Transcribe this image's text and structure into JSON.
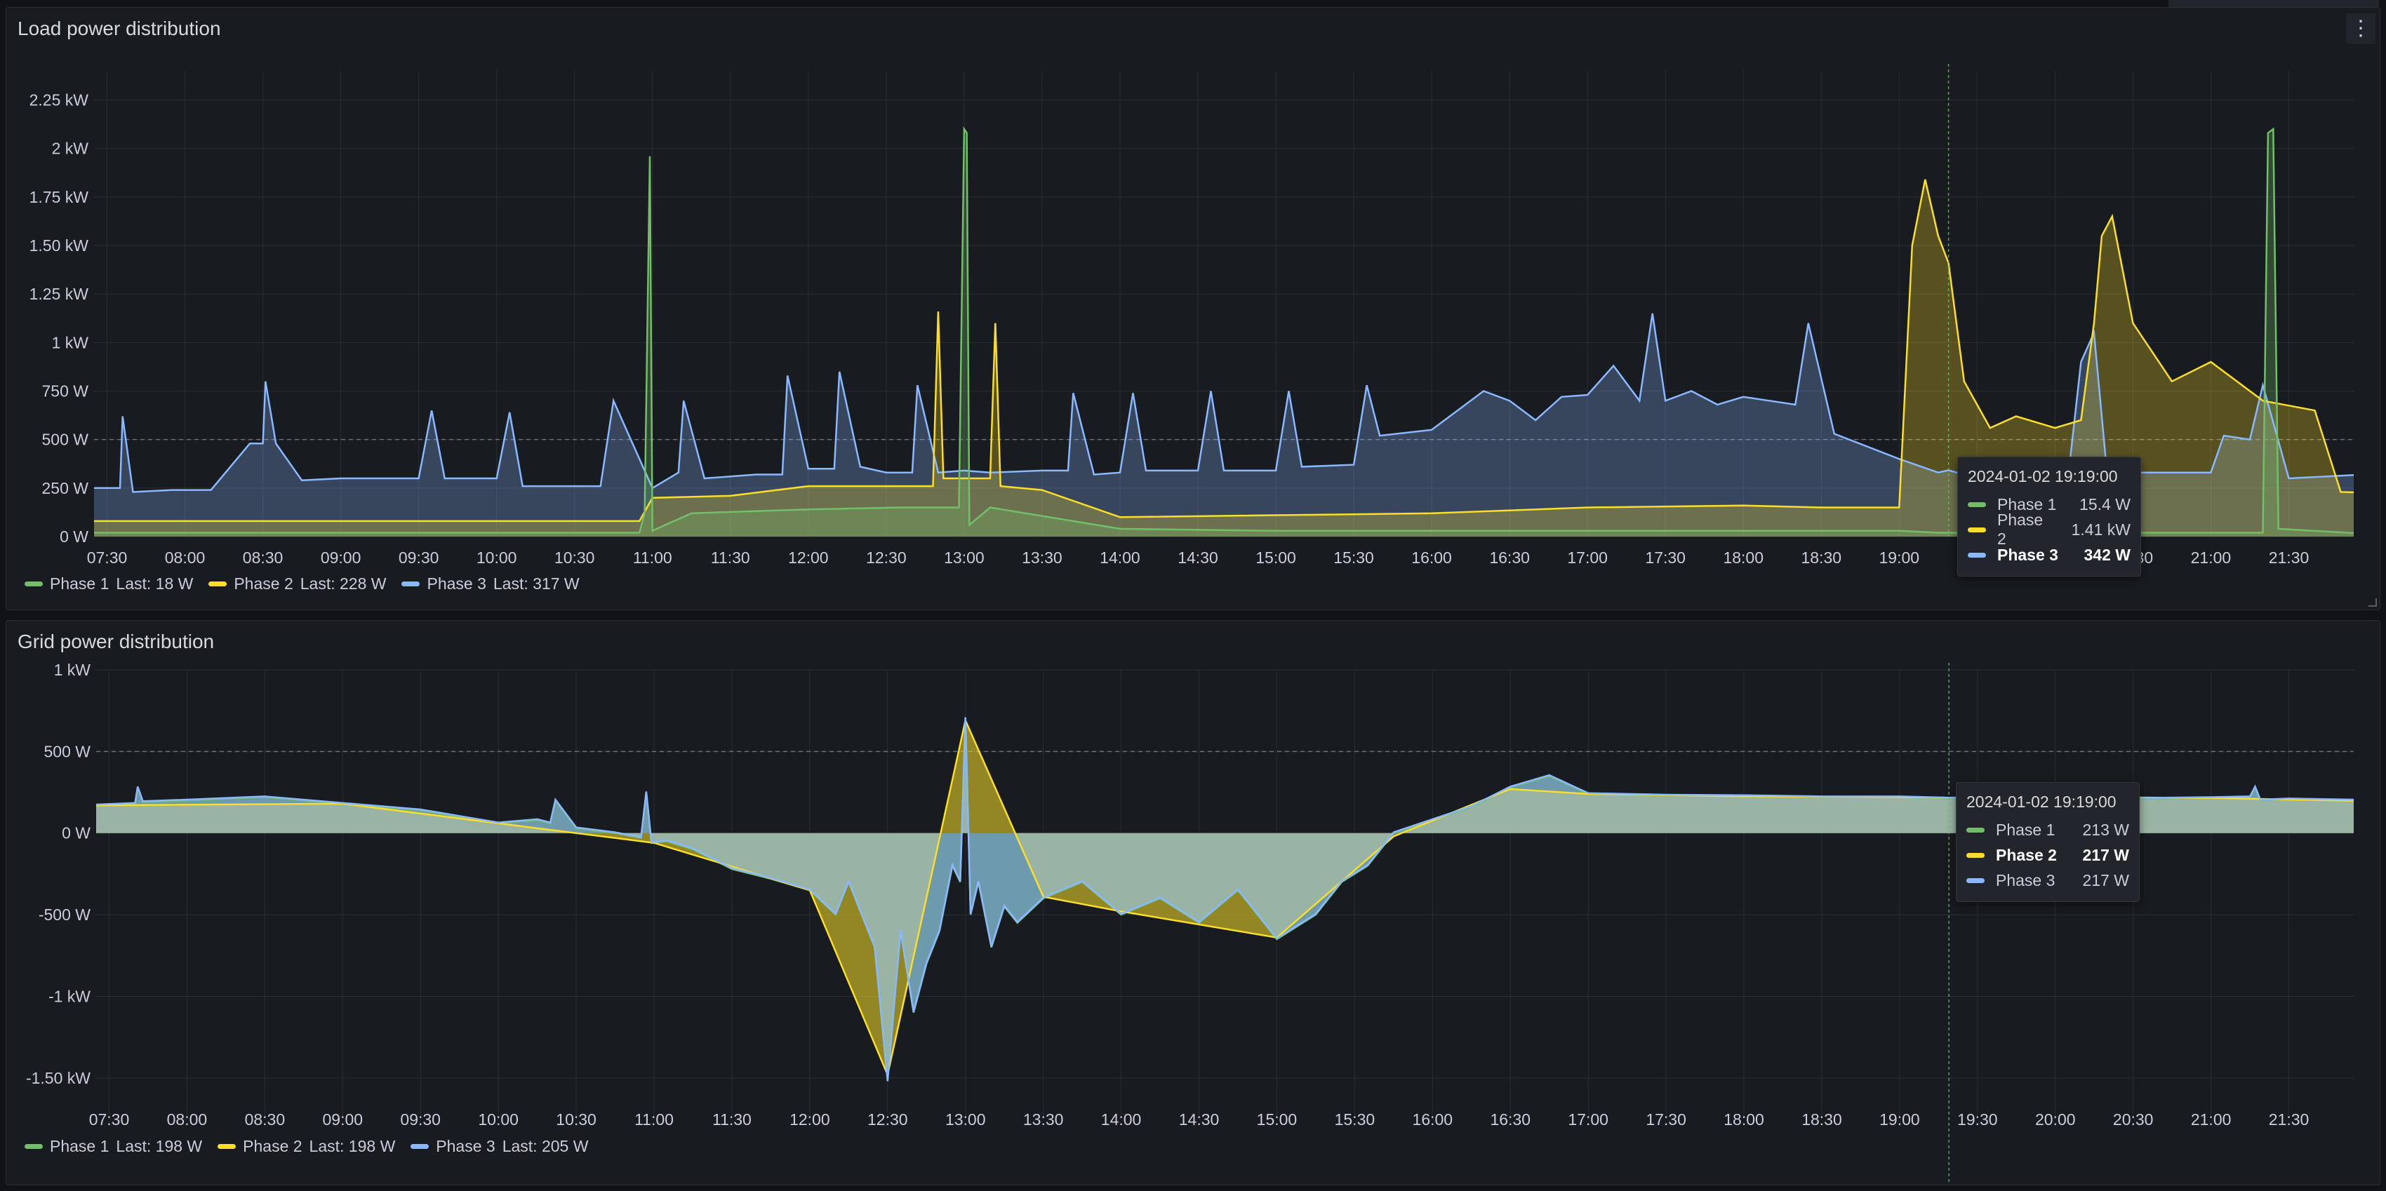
{
  "colors": {
    "phase1": "#73bf69",
    "phase2": "#fade2a",
    "phase3": "#8ab8ff",
    "grid": "#2a2d33",
    "threshold": "#6e7079"
  },
  "icons": {
    "panel_menu": "kebab-menu-icon"
  },
  "load_panel": {
    "title": "Load power distribution",
    "legend": [
      {
        "name": "Phase 1",
        "last": "Last: 18 W"
      },
      {
        "name": "Phase 2",
        "last": "Last: 228 W"
      },
      {
        "name": "Phase 3",
        "last": "Last: 317 W"
      }
    ],
    "tooltip": {
      "time": "2024-01-02 19:19:00",
      "rows": [
        {
          "name": "Phase 1",
          "value": "15.4 W"
        },
        {
          "name": "Phase 2",
          "value": "1.41 kW"
        },
        {
          "name": "Phase 3",
          "value": "342 W"
        }
      ]
    }
  },
  "grid_panel": {
    "title": "Grid power distribution",
    "legend": [
      {
        "name": "Phase 1",
        "last": "Last: 198 W"
      },
      {
        "name": "Phase 2",
        "last": "Last: 198 W"
      },
      {
        "name": "Phase 3",
        "last": "Last: 205 W"
      }
    ],
    "tooltip": {
      "time": "2024-01-02 19:19:00",
      "rows": [
        {
          "name": "Phase 1",
          "value": "213 W"
        },
        {
          "name": "Phase 2",
          "value": "217 W"
        },
        {
          "name": "Phase 3",
          "value": "217 W"
        }
      ]
    }
  },
  "chart_data": [
    {
      "type": "area",
      "title": "Load power distribution",
      "x_unit": "time (HH:MM)",
      "y_unit": "W",
      "xlim": [
        "07:25",
        "21:55"
      ],
      "ylim": [
        0,
        2400
      ],
      "y_ticks": [
        0,
        250,
        500,
        750,
        1000,
        1250,
        1500,
        1750,
        2000,
        2250
      ],
      "y_tick_labels": [
        "0 W",
        "250 W",
        "500 W",
        "750 W",
        "1 kW",
        "1.25 kW",
        "1.50 kW",
        "1.75 kW",
        "2 kW",
        "2.25 kW"
      ],
      "x_tick_labels": [
        "07:30",
        "08:00",
        "08:30",
        "09:00",
        "09:30",
        "10:00",
        "10:30",
        "11:00",
        "11:30",
        "12:00",
        "12:30",
        "13:00",
        "13:30",
        "14:00",
        "14:30",
        "15:00",
        "15:30",
        "16:00",
        "16:30",
        "17:00",
        "17:30",
        "18:00",
        "18:30",
        "19:00",
        "19:30",
        "20:00",
        "20:30",
        "21:00",
        "21:30"
      ],
      "threshold": 500,
      "cursor_time": "19:19",
      "series": [
        {
          "name": "Phase 1",
          "x": [
            "07:25",
            "10:55",
            "10:57",
            "10:59",
            "11:00",
            "11:15",
            "12:00",
            "12:35",
            "12:58",
            "13:00",
            "13:01",
            "13:02",
            "13:10",
            "14:00",
            "15:00",
            "16:00",
            "17:00",
            "18:00",
            "19:00",
            "19:15",
            "21:20",
            "21:22",
            "21:24",
            "21:26",
            "21:55"
          ],
          "values": [
            20,
            20,
            120,
            1960,
            30,
            120,
            140,
            150,
            150,
            2100,
            2080,
            60,
            150,
            40,
            30,
            30,
            30,
            30,
            30,
            20,
            20,
            2080,
            2100,
            40,
            18
          ]
        },
        {
          "name": "Phase 2",
          "x": [
            "07:25",
            "10:55",
            "11:00",
            "11:30",
            "12:00",
            "12:35",
            "12:48",
            "12:50",
            "12:52",
            "13:10",
            "13:12",
            "13:14",
            "13:30",
            "14:00",
            "16:00",
            "17:00",
            "18:00",
            "18:30",
            "19:00",
            "19:05",
            "19:10",
            "19:15",
            "19:19",
            "19:25",
            "19:35",
            "19:45",
            "20:00",
            "20:10",
            "20:15",
            "20:18",
            "20:22",
            "20:30",
            "20:45",
            "21:00",
            "21:20",
            "21:40",
            "21:50",
            "21:55"
          ],
          "values": [
            80,
            80,
            200,
            210,
            260,
            260,
            260,
            1160,
            300,
            300,
            1100,
            260,
            240,
            100,
            120,
            150,
            160,
            150,
            150,
            1500,
            1840,
            1550,
            1410,
            800,
            560,
            620,
            560,
            600,
            1100,
            1550,
            1650,
            1100,
            800,
            900,
            700,
            650,
            230,
            228
          ]
        },
        {
          "name": "Phase 3",
          "x": [
            "07:25",
            "07:35",
            "07:36",
            "07:40",
            "07:55",
            "08:10",
            "08:25",
            "08:30",
            "08:31",
            "08:35",
            "08:45",
            "09:00",
            "09:15",
            "09:30",
            "09:35",
            "09:40",
            "10:00",
            "10:05",
            "10:10",
            "10:30",
            "10:40",
            "10:45",
            "11:00",
            "11:10",
            "11:12",
            "11:20",
            "11:40",
            "11:50",
            "11:52",
            "12:00",
            "12:10",
            "12:12",
            "12:20",
            "12:30",
            "12:40",
            "12:42",
            "12:50",
            "13:00",
            "13:10",
            "13:30",
            "13:40",
            "13:42",
            "13:50",
            "14:00",
            "14:05",
            "14:10",
            "14:30",
            "14:35",
            "14:40",
            "15:00",
            "15:05",
            "15:10",
            "15:30",
            "15:35",
            "15:40",
            "16:00",
            "16:20",
            "16:30",
            "16:40",
            "16:50",
            "17:00",
            "17:10",
            "17:20",
            "17:25",
            "17:30",
            "17:40",
            "17:50",
            "18:00",
            "18:10",
            "18:20",
            "18:25",
            "18:35",
            "19:00",
            "19:15",
            "19:19",
            "19:30",
            "19:40",
            "20:00",
            "20:05",
            "20:10",
            "20:15",
            "20:20",
            "20:30",
            "20:45",
            "21:00",
            "21:05",
            "21:15",
            "21:20",
            "21:30",
            "21:55"
          ],
          "values": [
            250,
            250,
            620,
            230,
            240,
            240,
            480,
            480,
            800,
            480,
            290,
            300,
            300,
            300,
            650,
            300,
            300,
            640,
            260,
            260,
            260,
            700,
            250,
            330,
            700,
            300,
            320,
            320,
            830,
            350,
            350,
            850,
            360,
            330,
            330,
            780,
            330,
            340,
            330,
            340,
            340,
            740,
            320,
            330,
            740,
            340,
            340,
            750,
            340,
            340,
            750,
            360,
            370,
            780,
            520,
            550,
            750,
            700,
            600,
            720,
            730,
            880,
            700,
            1150,
            700,
            750,
            680,
            720,
            700,
            680,
            1100,
            530,
            400,
            330,
            342,
            300,
            280,
            300,
            300,
            900,
            1050,
            330,
            330,
            330,
            330,
            520,
            500,
            780,
            300,
            317
          ]
        }
      ]
    },
    {
      "type": "area",
      "title": "Grid power distribution",
      "x_unit": "time (HH:MM)",
      "y_unit": "W",
      "xlim": [
        "07:25",
        "21:55"
      ],
      "ylim": [
        -1750,
        1000
      ],
      "y_ticks": [
        -1500,
        -1000,
        -500,
        0,
        500,
        1000
      ],
      "y_tick_labels": [
        "-1.50 kW",
        "-1 kW",
        "-500 W",
        "0 W",
        "500 W",
        "1 kW"
      ],
      "x_tick_labels": [
        "07:30",
        "08:00",
        "08:30",
        "09:00",
        "09:30",
        "10:00",
        "10:30",
        "11:00",
        "11:30",
        "12:00",
        "12:30",
        "13:00",
        "13:30",
        "14:00",
        "14:30",
        "15:00",
        "15:30",
        "16:00",
        "16:30",
        "17:00",
        "17:30",
        "18:00",
        "18:30",
        "19:00",
        "19:30",
        "20:00",
        "20:30",
        "21:00",
        "21:30"
      ],
      "threshold": 500,
      "cursor_time": "19:19",
      "series": [
        {
          "name": "Phase 1",
          "x": [
            "07:25",
            "07:40",
            "07:41",
            "07:43",
            "08:00",
            "08:30",
            "09:00",
            "09:30",
            "09:45",
            "10:00",
            "10:15",
            "10:20",
            "10:22",
            "10:30",
            "10:45",
            "10:55",
            "10:57",
            "10:59",
            "11:05",
            "11:15",
            "11:30",
            "11:45",
            "12:00",
            "12:10",
            "12:15",
            "12:25",
            "12:30",
            "12:35",
            "12:40",
            "12:45",
            "12:50",
            "12:55",
            "12:58",
            "13:00",
            "13:02",
            "13:05",
            "13:10",
            "13:15",
            "13:20",
            "13:30",
            "13:45",
            "14:00",
            "14:15",
            "14:30",
            "14:45",
            "15:00",
            "15:15",
            "15:25",
            "15:35",
            "15:45",
            "16:00",
            "16:15",
            "16:30",
            "16:45",
            "17:00",
            "17:30",
            "18:00",
            "18:30",
            "19:00",
            "19:19",
            "19:30",
            "20:00",
            "20:30",
            "21:00",
            "21:15",
            "21:17",
            "21:19",
            "21:30",
            "21:55"
          ],
          "values": [
            170,
            180,
            280,
            190,
            200,
            220,
            180,
            140,
            100,
            60,
            80,
            60,
            200,
            30,
            0,
            -30,
            250,
            -60,
            -50,
            -100,
            -220,
            -280,
            -350,
            -500,
            -300,
            -700,
            -1500,
            -600,
            -1100,
            -800,
            -600,
            -200,
            -300,
            700,
            -500,
            -300,
            -700,
            -450,
            -550,
            -400,
            -300,
            -500,
            -400,
            -550,
            -350,
            -650,
            -500,
            -300,
            -200,
            0,
            80,
            160,
            280,
            350,
            240,
            230,
            230,
            220,
            220,
            213,
            215,
            220,
            210,
            215,
            220,
            280,
            200,
            210,
            198
          ]
        },
        {
          "name": "Phase 2",
          "x": [
            "07:25",
            "09:00",
            "10:00",
            "11:00",
            "12:00",
            "12:30",
            "13:00",
            "13:30",
            "14:00",
            "15:00",
            "15:45",
            "16:30",
            "17:00",
            "18:00",
            "19:00",
            "19:19",
            "20:00",
            "21:00",
            "21:55"
          ],
          "values": [
            170,
            180,
            60,
            -60,
            -350,
            -1480,
            690,
            -390,
            -480,
            -640,
            -20,
            270,
            240,
            225,
            220,
            217,
            222,
            215,
            198
          ]
        },
        {
          "name": "Phase 3",
          "x": [
            "07:25",
            "07:40",
            "07:41",
            "07:43",
            "08:00",
            "08:30",
            "09:00",
            "09:30",
            "09:45",
            "10:00",
            "10:15",
            "10:20",
            "10:22",
            "10:30",
            "10:45",
            "10:55",
            "10:57",
            "10:59",
            "11:05",
            "11:15",
            "11:30",
            "11:45",
            "12:00",
            "12:10",
            "12:15",
            "12:25",
            "12:30",
            "12:35",
            "12:40",
            "12:45",
            "12:50",
            "12:55",
            "12:58",
            "13:00",
            "13:02",
            "13:05",
            "13:10",
            "13:15",
            "13:20",
            "13:30",
            "13:45",
            "14:00",
            "14:15",
            "14:30",
            "14:45",
            "15:00",
            "15:15",
            "15:25",
            "15:35",
            "15:45",
            "16:00",
            "16:15",
            "16:30",
            "16:45",
            "17:00",
            "17:30",
            "18:00",
            "18:30",
            "19:00",
            "19:19",
            "19:30",
            "20:00",
            "20:30",
            "21:00",
            "21:15",
            "21:17",
            "21:19",
            "21:30",
            "21:55"
          ],
          "values": [
            175,
            185,
            285,
            195,
            205,
            225,
            185,
            145,
            105,
            65,
            85,
            65,
            205,
            35,
            5,
            -25,
            255,
            -55,
            -45,
            -95,
            -215,
            -275,
            -345,
            -495,
            -295,
            -695,
            -1520,
            -595,
            -1095,
            -795,
            -595,
            -195,
            -295,
            710,
            -495,
            -295,
            -695,
            -445,
            -545,
            -395,
            -295,
            -495,
            -395,
            -545,
            -345,
            -645,
            -495,
            -295,
            -195,
            5,
            85,
            165,
            285,
            355,
            245,
            235,
            232,
            225,
            225,
            217,
            220,
            222,
            215,
            220,
            225,
            285,
            205,
            212,
            205
          ]
        }
      ]
    }
  ]
}
